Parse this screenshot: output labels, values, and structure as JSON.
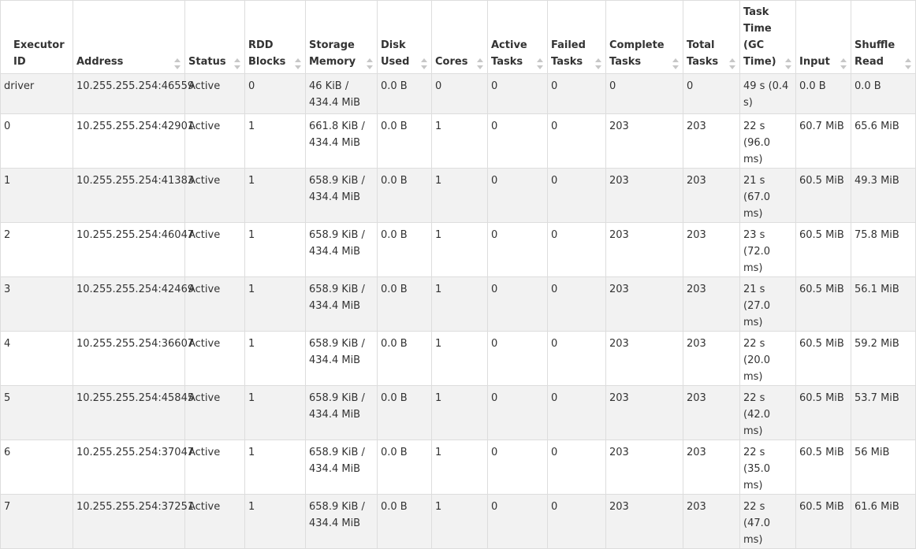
{
  "executors_table": {
    "columns": [
      {
        "key": "executor_id",
        "label": "Executor ID"
      },
      {
        "key": "address",
        "label": "Address"
      },
      {
        "key": "status",
        "label": "Status"
      },
      {
        "key": "rdd_blocks",
        "label": "RDD Blocks"
      },
      {
        "key": "storage_memory",
        "label": "Storage Memory"
      },
      {
        "key": "disk_used",
        "label": "Disk Used"
      },
      {
        "key": "cores",
        "label": "Cores"
      },
      {
        "key": "active_tasks",
        "label": "Active Tasks"
      },
      {
        "key": "failed_tasks",
        "label": "Failed Tasks"
      },
      {
        "key": "complete_tasks",
        "label": "Complete Tasks"
      },
      {
        "key": "total_tasks",
        "label": "Total Tasks"
      },
      {
        "key": "task_time",
        "label": "Task Time (GC Time)"
      },
      {
        "key": "input",
        "label": "Input"
      },
      {
        "key": "shuffle_read",
        "label": "Shuffle Read"
      }
    ],
    "rows": [
      [
        "driver",
        "10.255.255.254:46559",
        "Active",
        "0",
        "46 KiB / 434.4 MiB",
        "0.0 B",
        "0",
        "0",
        "0",
        "0",
        "0",
        "49 s (0.4 s)",
        "0.0 B",
        "0.0 B"
      ],
      [
        "0",
        "10.255.255.254:42901",
        "Active",
        "1",
        "661.8 KiB / 434.4 MiB",
        "0.0 B",
        "1",
        "0",
        "0",
        "203",
        "203",
        "22 s (96.0 ms)",
        "60.7 MiB",
        "65.6 MiB"
      ],
      [
        "1",
        "10.255.255.254:41383",
        "Active",
        "1",
        "658.9 KiB / 434.4 MiB",
        "0.0 B",
        "1",
        "0",
        "0",
        "203",
        "203",
        "21 s (67.0 ms)",
        "60.5 MiB",
        "49.3 MiB"
      ],
      [
        "2",
        "10.255.255.254:46047",
        "Active",
        "1",
        "658.9 KiB / 434.4 MiB",
        "0.0 B",
        "1",
        "0",
        "0",
        "203",
        "203",
        "23 s (72.0 ms)",
        "60.5 MiB",
        "75.8 MiB"
      ],
      [
        "3",
        "10.255.255.254:42469",
        "Active",
        "1",
        "658.9 KiB / 434.4 MiB",
        "0.0 B",
        "1",
        "0",
        "0",
        "203",
        "203",
        "21 s (27.0 ms)",
        "60.5 MiB",
        "56.1 MiB"
      ],
      [
        "4",
        "10.255.255.254:36607",
        "Active",
        "1",
        "658.9 KiB / 434.4 MiB",
        "0.0 B",
        "1",
        "0",
        "0",
        "203",
        "203",
        "22 s (20.0 ms)",
        "60.5 MiB",
        "59.2 MiB"
      ],
      [
        "5",
        "10.255.255.254:45845",
        "Active",
        "1",
        "658.9 KiB / 434.4 MiB",
        "0.0 B",
        "1",
        "0",
        "0",
        "203",
        "203",
        "22 s (42.0 ms)",
        "60.5 MiB",
        "53.7 MiB"
      ],
      [
        "6",
        "10.255.255.254:37047",
        "Active",
        "1",
        "658.9 KiB / 434.4 MiB",
        "0.0 B",
        "1",
        "0",
        "0",
        "203",
        "203",
        "22 s (35.0 ms)",
        "60.5 MiB",
        "56 MiB"
      ],
      [
        "7",
        "10.255.255.254:37251",
        "Active",
        "1",
        "658.9 KiB / 434.4 MiB",
        "0.0 B",
        "1",
        "0",
        "0",
        "203",
        "203",
        "22 s (47.0 ms)",
        "60.5 MiB",
        "61.6 MiB"
      ]
    ]
  },
  "icons": {
    "sort": "sort-arrows-icon"
  },
  "colors": {
    "stripe": "#f2f2f2",
    "border": "#dddddd",
    "sort_arrow": "#c7c7c7",
    "text": "#333333"
  }
}
